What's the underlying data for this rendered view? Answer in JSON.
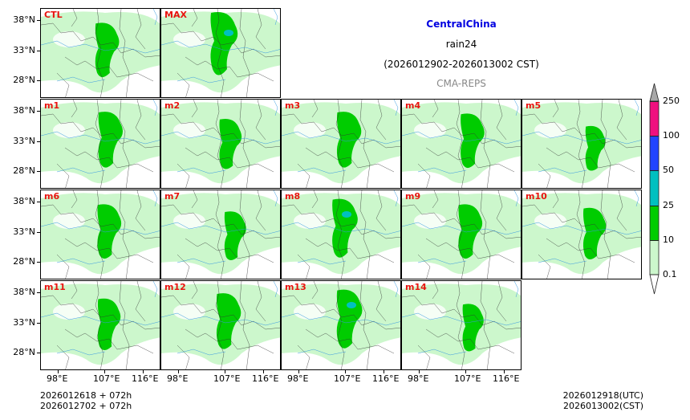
{
  "title": {
    "region": "CentralChina",
    "variable": "rain24",
    "period": "(2026012902-2026013002 CST)",
    "model": "CMA-REPS"
  },
  "panels": [
    {
      "label": "CTL",
      "row": 0,
      "col": 0,
      "intensity": 0.7
    },
    {
      "label": "MAX",
      "row": 0,
      "col": 1,
      "intensity": 1.0
    },
    {
      "label": "m1",
      "row": 1,
      "col": 0,
      "intensity": 0.75
    },
    {
      "label": "m2",
      "row": 1,
      "col": 1,
      "intensity": 0.55
    },
    {
      "label": "m3",
      "row": 1,
      "col": 2,
      "intensity": 0.75
    },
    {
      "label": "m4",
      "row": 1,
      "col": 3,
      "intensity": 0.7
    },
    {
      "label": "m5",
      "row": 1,
      "col": 4,
      "intensity": 0.35
    },
    {
      "label": "m6",
      "row": 2,
      "col": 0,
      "intensity": 0.7
    },
    {
      "label": "m7",
      "row": 2,
      "col": 1,
      "intensity": 0.5
    },
    {
      "label": "m8",
      "row": 2,
      "col": 2,
      "intensity": 0.85
    },
    {
      "label": "m9",
      "row": 2,
      "col": 3,
      "intensity": 0.7
    },
    {
      "label": "m10",
      "row": 2,
      "col": 4,
      "intensity": 0.6
    },
    {
      "label": "m11",
      "row": 3,
      "col": 0,
      "intensity": 0.6
    },
    {
      "label": "m12",
      "row": 3,
      "col": 1,
      "intensity": 0.75
    },
    {
      "label": "m13",
      "row": 3,
      "col": 2,
      "intensity": 0.85
    },
    {
      "label": "m14",
      "row": 3,
      "col": 3,
      "intensity": 0.45
    }
  ],
  "y_ticks": [
    "38°N",
    "33°N",
    "28°N"
  ],
  "x_ticks": [
    "98°E",
    "107°E",
    "116°E"
  ],
  "colorbar": {
    "levels": [
      "0.1",
      "10",
      "25",
      "50",
      "100",
      "250"
    ],
    "colors": [
      "#ccf7cc",
      "#00cc00",
      "#00c0c0",
      "#2244ff",
      "#f0107f"
    ],
    "over_color": "#a8a8a8"
  },
  "footer": {
    "init_utc": "2026012618  +  072h",
    "init_cst": "2026012702  +  072h",
    "valid_utc": "2026012918(UTC)",
    "valid_cst": "2026013002(CST)"
  }
}
